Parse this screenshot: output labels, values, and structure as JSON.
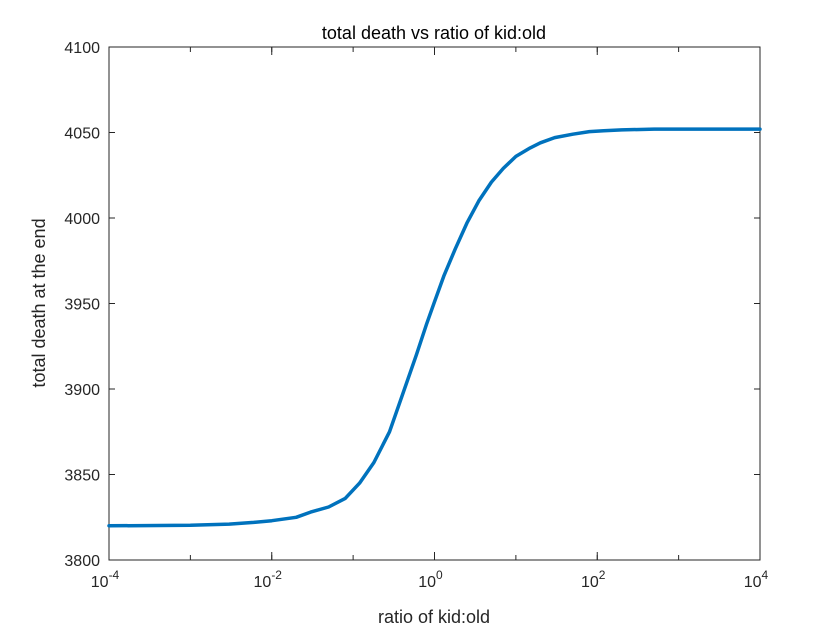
{
  "chart_data": {
    "type": "line",
    "title": "total death vs ratio of kid:old",
    "xlabel": "ratio of kid:old",
    "ylabel": "total death at the end",
    "xscale": "log",
    "xlim": [
      0.0001,
      10000
    ],
    "ylim": [
      3800,
      4100
    ],
    "grid": false,
    "legend": "none",
    "x_ticks": [
      {
        "base": "10",
        "exp": "-4",
        "value": 0.0001
      },
      {
        "base": "10",
        "exp": "-2",
        "value": 0.01
      },
      {
        "base": "10",
        "exp": "0",
        "value": 1
      },
      {
        "base": "10",
        "exp": "2",
        "value": 100
      },
      {
        "base": "10",
        "exp": "4",
        "value": 10000
      }
    ],
    "y_ticks": [
      "3800",
      "3850",
      "3900",
      "3950",
      "4000",
      "4050",
      "4100"
    ],
    "series": [
      {
        "color": "#0072BD",
        "x": [
          0.0001,
          0.001,
          0.003,
          0.006,
          0.01,
          0.02,
          0.03,
          0.05,
          0.08,
          0.12,
          0.18,
          0.28,
          0.4,
          0.6,
          0.8,
          1.0,
          1.3,
          1.8,
          2.5,
          3.5,
          5,
          7,
          10,
          15,
          20,
          30,
          50,
          80,
          120,
          200,
          500,
          1000,
          10000
        ],
        "y": [
          3820,
          3820.3,
          3821,
          3822,
          3823,
          3825,
          3828,
          3831,
          3836,
          3845,
          3857,
          3875,
          3896,
          3920,
          3938,
          3951,
          3966,
          3982,
          3997,
          4010,
          4021,
          4029,
          4036,
          4041,
          4044,
          4047,
          4049,
          4050.5,
          4051,
          4051.5,
          4052,
          4052,
          4052
        ]
      }
    ]
  }
}
